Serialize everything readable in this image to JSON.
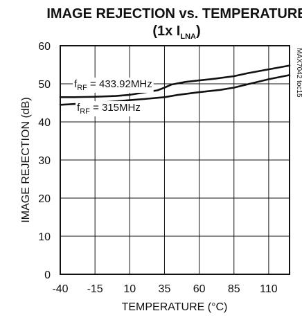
{
  "chart_data": {
    "type": "line",
    "title": "IMAGE REJECTION vs. TEMPERATURE",
    "subtitle_prefix": "(1x I",
    "subtitle_sub": "LNA",
    "subtitle_suffix": ")",
    "xlabel": "TEMPERATURE (°C)",
    "ylabel": "IMAGE REJECTION (dB)",
    "part_number": "MAX7042 toc15",
    "xlim": [
      -40,
      125
    ],
    "ylim": [
      0,
      60
    ],
    "x_ticks": [
      -40,
      -15,
      10,
      35,
      60,
      85,
      110
    ],
    "x_tick_labels": [
      "-40",
      "-15",
      "10",
      "35",
      "60",
      "85",
      "110"
    ],
    "y_ticks": [
      0,
      10,
      20,
      30,
      40,
      50,
      60
    ],
    "y_tick_labels": [
      "0",
      "10",
      "20",
      "30",
      "40",
      "50",
      "60"
    ],
    "grid": true,
    "series": [
      {
        "label_prefix": "f",
        "label_sub": "RF",
        "label_suffix": " = 433.92MHz",
        "label_anchor": [
          -30,
          49.1
        ],
        "x": [
          -40,
          -30,
          -15,
          0,
          10,
          20,
          30,
          35,
          40,
          50,
          60,
          70,
          85,
          95,
          110,
          125
        ],
        "y": [
          46.5,
          46.5,
          46.6,
          46.8,
          47.1,
          47.7,
          48.3,
          49.0,
          49.8,
          50.5,
          50.9,
          51.3,
          52.0,
          52.8,
          53.8,
          54.8
        ]
      },
      {
        "label_prefix": "f",
        "label_sub": "RF",
        "label_suffix": " = 315MHz",
        "label_anchor": [
          -28,
          42.9
        ],
        "x": [
          -40,
          -30,
          -15,
          0,
          10,
          20,
          35,
          45,
          60,
          75,
          85,
          95,
          110,
          125
        ],
        "y": [
          44.5,
          44.7,
          45.0,
          45.4,
          45.7,
          46.0,
          46.5,
          47.1,
          47.8,
          48.4,
          49.0,
          49.9,
          51.2,
          52.3
        ]
      }
    ]
  }
}
